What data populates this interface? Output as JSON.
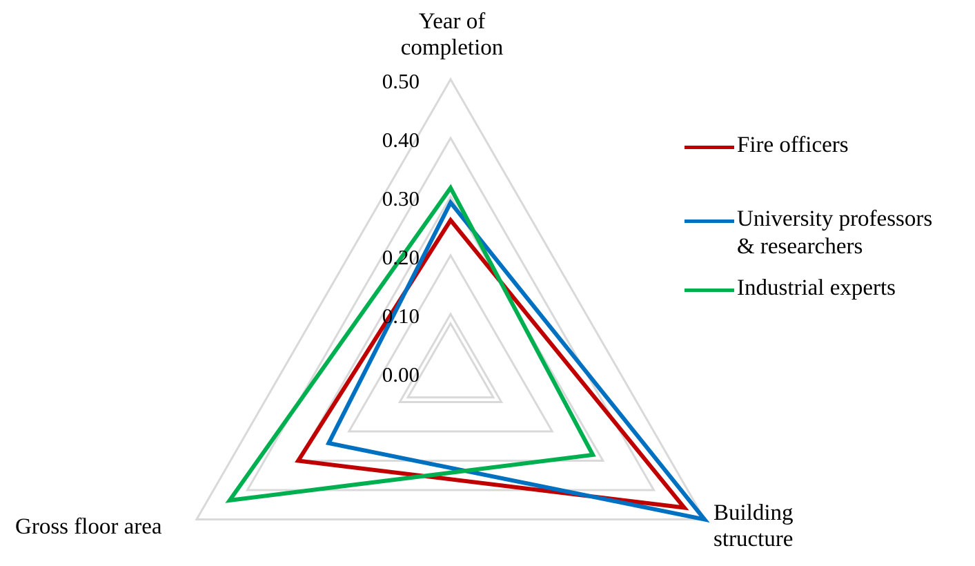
{
  "chart_data": {
    "type": "radar",
    "axes": [
      "Year of completion",
      "Building structure",
      "Gross floor area"
    ],
    "axis_label_lines": [
      [
        "Year of",
        "completion"
      ],
      [
        "Building",
        "structure"
      ],
      [
        "Gross floor area"
      ]
    ],
    "r_ticks": [
      "0.00",
      "0.10",
      "0.20",
      "0.30",
      "0.40",
      "0.50"
    ],
    "rlim": [
      0,
      0.5
    ],
    "grid": true,
    "legend_position": "right",
    "series": [
      {
        "name": "Fire officers",
        "legend_lines": [
          "Fire officers"
        ],
        "color": "#C00000",
        "values": [
          0.26,
          0.46,
          0.3
        ]
      },
      {
        "name": "University professors & researchers",
        "legend_lines": [
          "University professors",
          "& researchers"
        ],
        "color": "#0070C0",
        "values": [
          0.29,
          0.5,
          0.24
        ]
      },
      {
        "name": "Industrial experts",
        "legend_lines": [
          "Industrial experts"
        ],
        "color": "#00B050",
        "values": [
          0.315,
          0.28,
          0.435
        ]
      }
    ],
    "grid_color": "#D9D9D9"
  }
}
